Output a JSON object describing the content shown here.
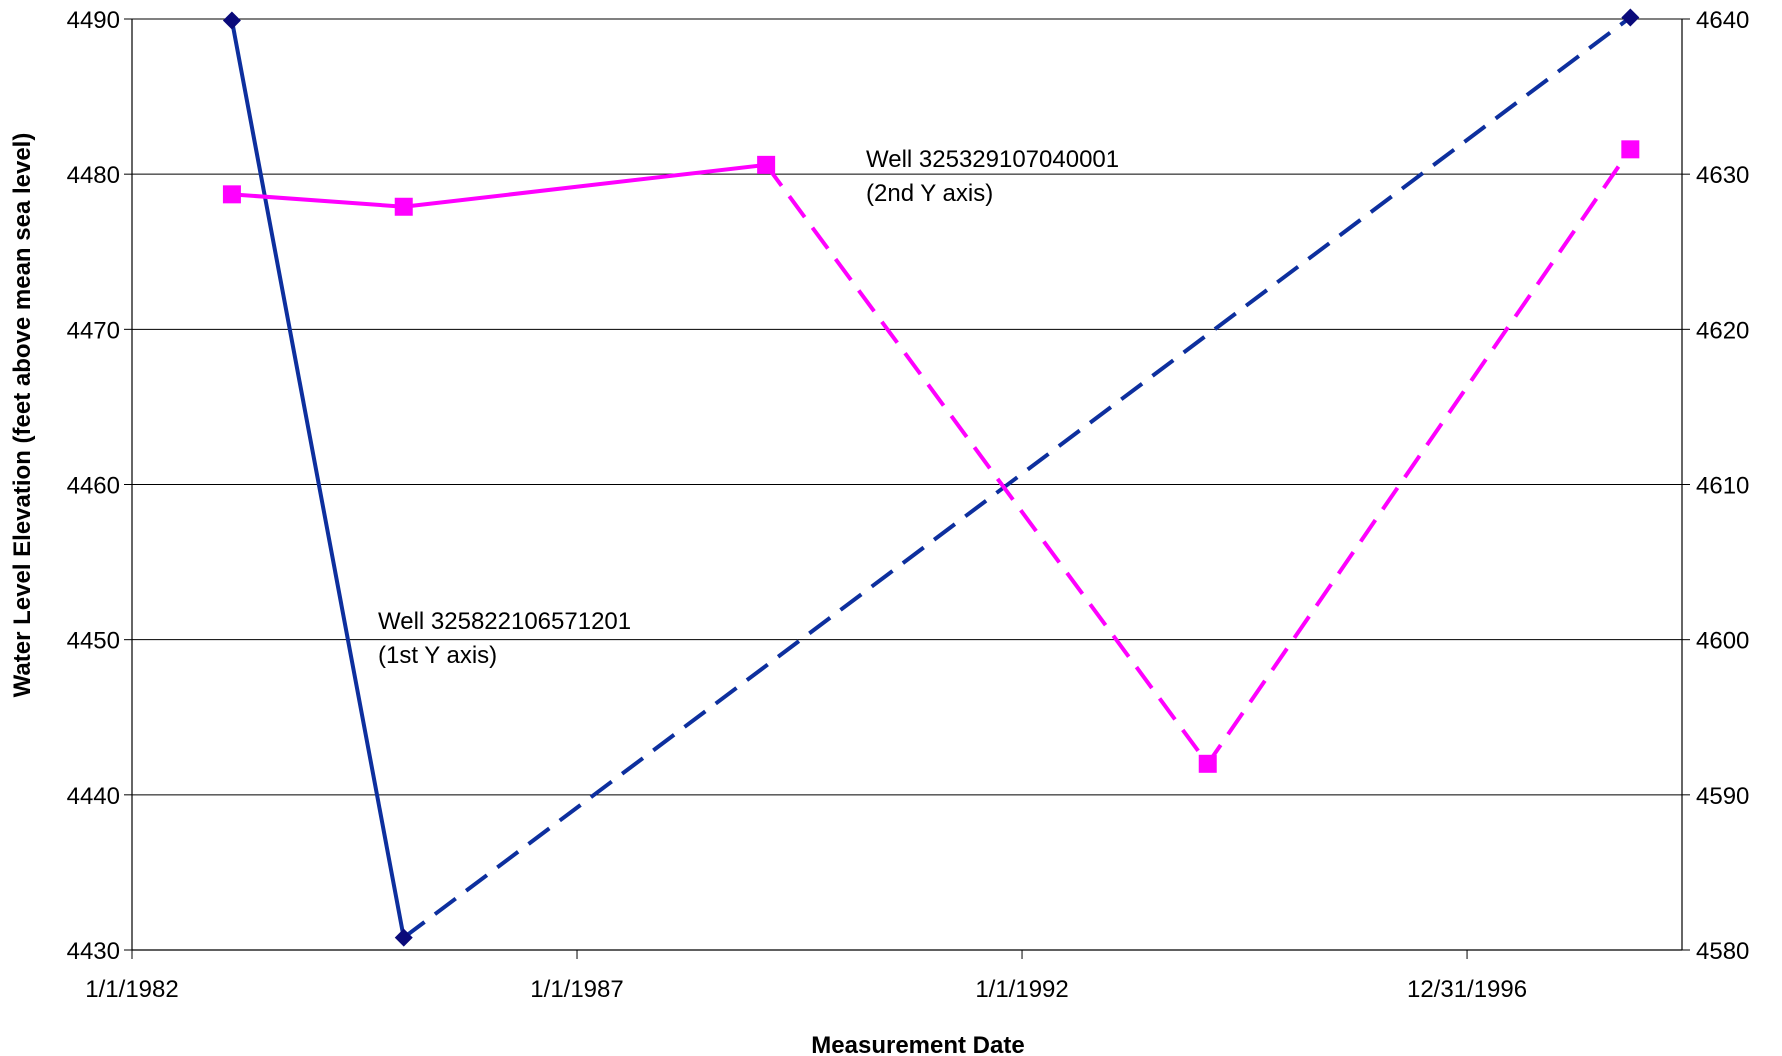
{
  "chart_data": {
    "type": "line",
    "title": "",
    "xlabel": "Measurement Date",
    "ylabel": "Water Level Elevation (feet above mean sea level)",
    "y2label": "",
    "x_ticks": [
      "1/1/1982",
      "1/1/1987",
      "1/1/1992",
      "12/31/1996"
    ],
    "x_tick_dates": [
      "1982-01-01",
      "1987-01-01",
      "1992-01-01",
      "1996-12-31"
    ],
    "xlim": [
      "1982-01-01",
      "1999-06-01"
    ],
    "y1_ticks": [
      4430,
      4440,
      4450,
      4460,
      4470,
      4480,
      4490
    ],
    "y1lim": [
      4430,
      4490
    ],
    "y2_ticks": [
      4580,
      4590,
      4600,
      4610,
      4620,
      4630,
      4640
    ],
    "y2lim": [
      4580,
      4640
    ],
    "grid": true,
    "series": [
      {
        "name": "Well 325822106571201",
        "axis": "y1",
        "color": "#0D2F9E",
        "marker": "diamond",
        "marker_color": "#0A0A7A",
        "points": [
          {
            "date": "1983-02-15",
            "value": 4489.9
          },
          {
            "date": "1985-01-20",
            "value": 4430.8
          },
          {
            "date": "1998-11-01",
            "value": 4490.1
          }
        ],
        "dashed_from_index": 1
      },
      {
        "name": "Well 325329107040001",
        "axis": "y2",
        "color": "#FF00FF",
        "marker": "square",
        "marker_color": "#FF00FF",
        "points": [
          {
            "date": "1983-02-15",
            "value": 4628.7
          },
          {
            "date": "1985-01-20",
            "value": 4627.9
          },
          {
            "date": "1989-02-15",
            "value": 4630.6
          },
          {
            "date": "1994-02-01",
            "value": 4592
          },
          {
            "date": "1998-11-01",
            "value": 4631.6
          }
        ],
        "dashed_from_index": 2
      }
    ],
    "annotations": [
      {
        "series": 0,
        "lines": [
          "Well 325822106571201",
          "(1st Y axis)"
        ]
      },
      {
        "series": 1,
        "lines": [
          "Well 325329107040001",
          "(2nd Y axis)"
        ]
      }
    ]
  }
}
